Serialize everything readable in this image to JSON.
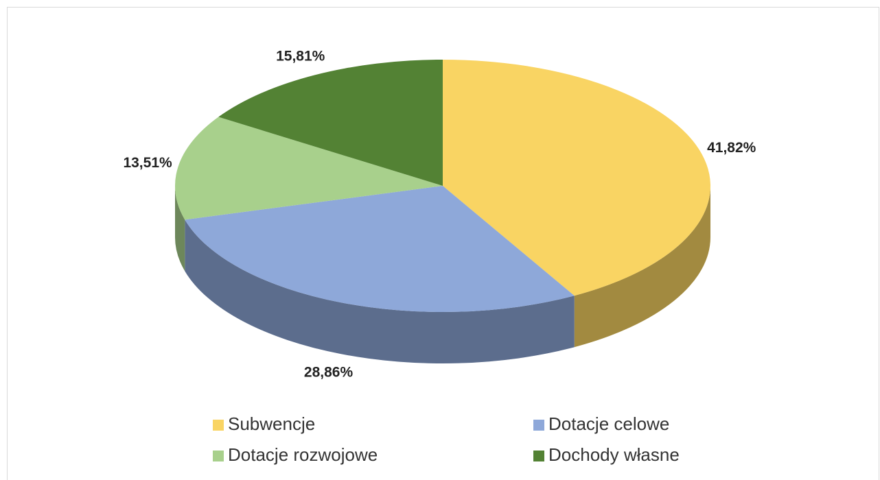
{
  "chart_data": {
    "type": "pie",
    "categories": [
      "Subwencje",
      "Dotacje celowe",
      "Dotacje rozwojowe",
      "Dochody własne"
    ],
    "values": [
      41.82,
      28.86,
      13.51,
      15.81
    ],
    "value_labels": [
      "41,82%",
      "28,86%",
      "13,51%",
      "15,81%"
    ],
    "colors": [
      "#f9d463",
      "#8ea8d9",
      "#a8d08c",
      "#538234"
    ]
  }
}
